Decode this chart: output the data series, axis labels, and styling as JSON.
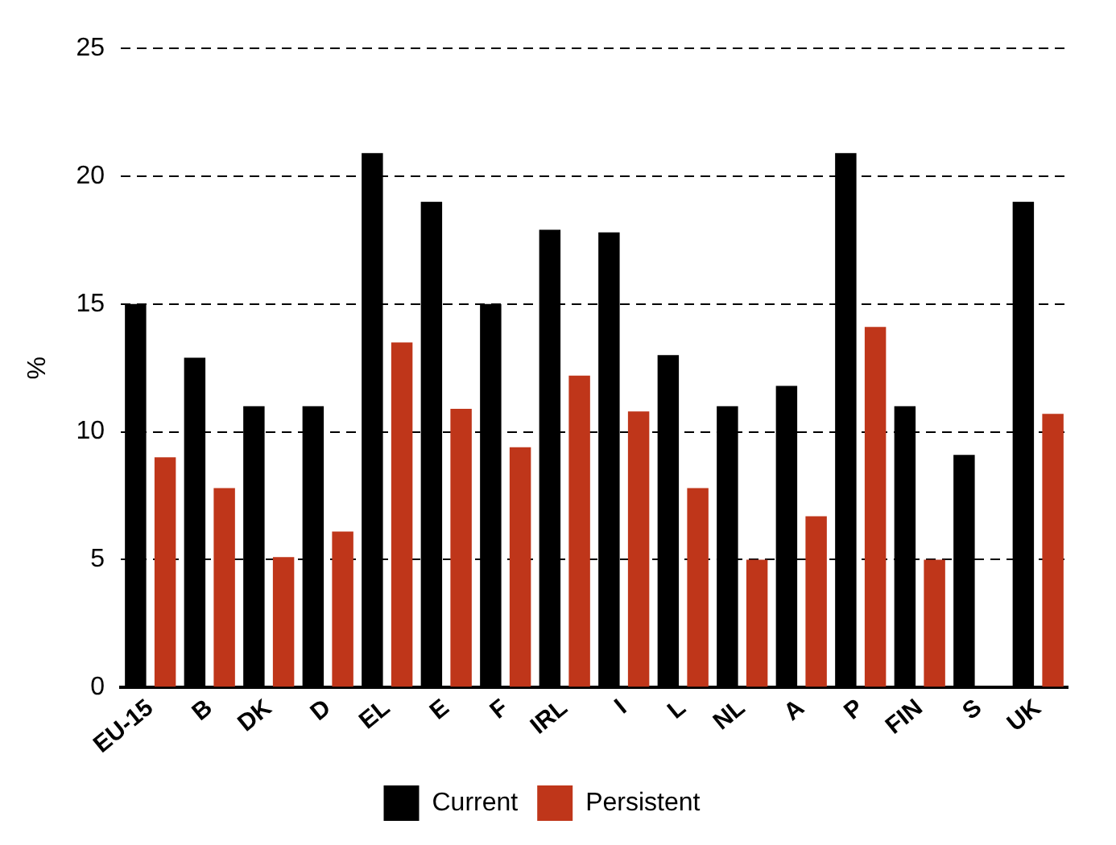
{
  "chart_data": {
    "type": "bar",
    "ylabel": "%",
    "categories": [
      "EU-15",
      "B",
      "DK",
      "D",
      "EL",
      "E",
      "F",
      "IRL",
      "I",
      "L",
      "NL",
      "A",
      "P",
      "FIN",
      "S",
      "UK"
    ],
    "series": [
      {
        "name": "Current",
        "color": "#000000",
        "values": [
          15,
          12.9,
          11,
          11,
          20.9,
          19,
          15,
          17.9,
          17.8,
          13,
          11,
          11.8,
          20.9,
          11,
          9.1,
          19
        ]
      },
      {
        "name": "Persistent",
        "color": "#bf361a",
        "values": [
          9,
          7.8,
          5.1,
          6.1,
          13.5,
          10.9,
          9.4,
          12.2,
          10.8,
          7.8,
          5,
          6.7,
          14.1,
          5,
          null,
          10.7
        ]
      }
    ],
    "ylim": [
      0,
      25
    ],
    "yticks": [
      0,
      5,
      10,
      15,
      20,
      25
    ],
    "grid": "y",
    "legend": "bottom"
  }
}
